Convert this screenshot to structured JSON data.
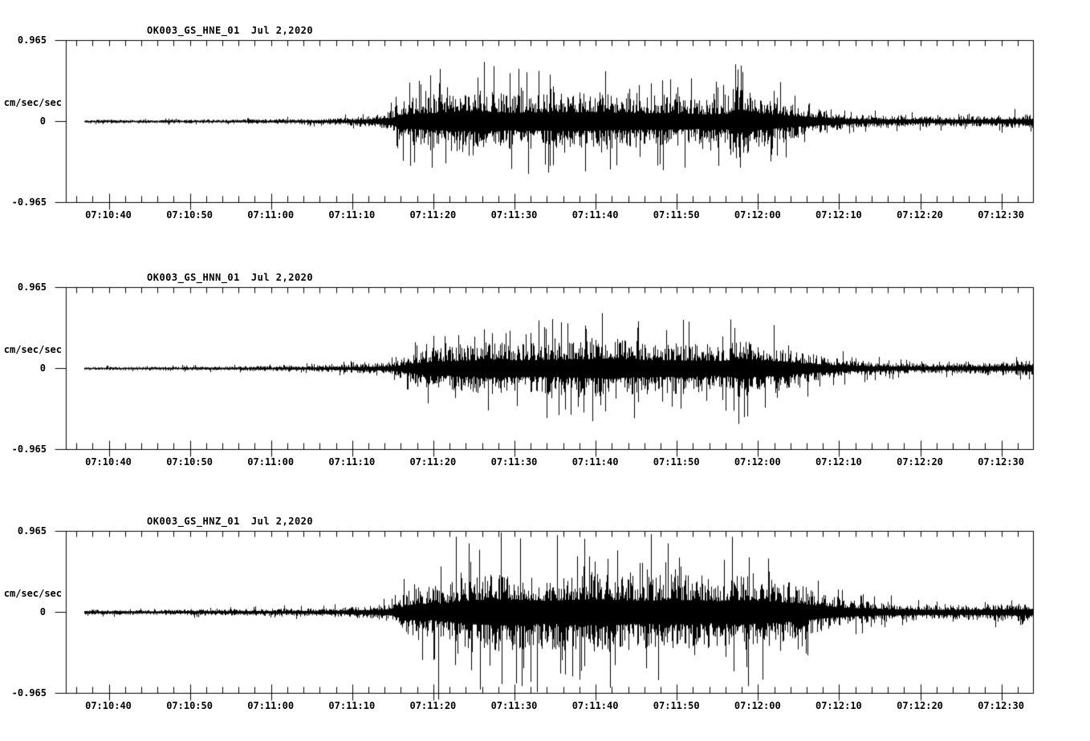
{
  "figure": {
    "background_color": "#ffffff",
    "trace_color": "#000000",
    "axis_color": "#000000"
  },
  "chart_data": [
    {
      "type": "line",
      "kind": "seismogram",
      "title": "OK003_GS_HNE_01",
      "date": "Jul 2,2020",
      "ylabel": "cm/sec/sec",
      "ymax_label": "0.965",
      "yzero_label": "0",
      "ymin_label": "-0.965",
      "ylim": [
        -0.965,
        0.965
      ],
      "xtick_labels": [
        "07:10:40",
        "07:10:50",
        "07:11:00",
        "07:11:10",
        "07:11:20",
        "07:11:30",
        "07:11:40",
        "07:11:50",
        "07:12:00",
        "07:12:10",
        "07:12:20",
        "07:12:30"
      ],
      "x_start_time": "07:10:35",
      "x_end_time": "07:12:34",
      "x_major_tick_interval_sec": 10,
      "x_minor_tick_interval_sec": 2,
      "envelope_units": "cm/sec/sec amplitude vs seconds from left edge",
      "envelope": [
        [
          0,
          0.022
        ],
        [
          10,
          0.024
        ],
        [
          20,
          0.028
        ],
        [
          28,
          0.034
        ],
        [
          34,
          0.05
        ],
        [
          38,
          0.08
        ],
        [
          40,
          0.14
        ],
        [
          41.5,
          0.3
        ],
        [
          44,
          0.34
        ],
        [
          48,
          0.4
        ],
        [
          51,
          0.42
        ],
        [
          55,
          0.37
        ],
        [
          59,
          0.39
        ],
        [
          63,
          0.4
        ],
        [
          67,
          0.37
        ],
        [
          71,
          0.35
        ],
        [
          75,
          0.34
        ],
        [
          79,
          0.3
        ],
        [
          81.5,
          0.33
        ],
        [
          82.5,
          0.5
        ],
        [
          84,
          0.44
        ],
        [
          86,
          0.33
        ],
        [
          89,
          0.25
        ],
        [
          92,
          0.18
        ],
        [
          95,
          0.12
        ],
        [
          98,
          0.09
        ],
        [
          102,
          0.075
        ],
        [
          107,
          0.065
        ],
        [
          112,
          0.07
        ],
        [
          116,
          0.085
        ],
        [
          119.2,
          0.1
        ]
      ],
      "peaks": [
        [
          51.5,
          0.71
        ],
        [
          66.4,
          0.6
        ],
        [
          82.7,
          0.62
        ],
        [
          45,
          -0.55
        ],
        [
          60,
          -0.52
        ],
        [
          83,
          -0.55
        ]
      ],
      "seed": 7
    },
    {
      "type": "line",
      "kind": "seismogram",
      "title": "OK003_GS_HNN_01",
      "date": "Jul 2,2020",
      "ylabel": "cm/sec/sec",
      "ymax_label": "0.965",
      "yzero_label": "0",
      "ymin_label": "-0.965",
      "ylim": [
        -0.965,
        0.965
      ],
      "xtick_labels": [
        "07:10:40",
        "07:10:50",
        "07:11:00",
        "07:11:10",
        "07:11:20",
        "07:11:30",
        "07:11:40",
        "07:11:50",
        "07:12:00",
        "07:12:10",
        "07:12:20",
        "07:12:30"
      ],
      "x_start_time": "07:10:35",
      "x_end_time": "07:12:34",
      "x_major_tick_interval_sec": 10,
      "x_minor_tick_interval_sec": 2,
      "envelope_units": "cm/sec/sec amplitude vs seconds from left edge",
      "envelope": [
        [
          0,
          0.02
        ],
        [
          12,
          0.024
        ],
        [
          22,
          0.03
        ],
        [
          30,
          0.04
        ],
        [
          35,
          0.055
        ],
        [
          39,
          0.08
        ],
        [
          41,
          0.12
        ],
        [
          43,
          0.22
        ],
        [
          46,
          0.3
        ],
        [
          49,
          0.33
        ],
        [
          53,
          0.36
        ],
        [
          57,
          0.34
        ],
        [
          61,
          0.36
        ],
        [
          64,
          0.4
        ],
        [
          67,
          0.42
        ],
        [
          70,
          0.37
        ],
        [
          74,
          0.35
        ],
        [
          78,
          0.33
        ],
        [
          81,
          0.31
        ],
        [
          83,
          0.43
        ],
        [
          85,
          0.36
        ],
        [
          88,
          0.29
        ],
        [
          91,
          0.21
        ],
        [
          94,
          0.15
        ],
        [
          97,
          0.11
        ],
        [
          100,
          0.085
        ],
        [
          104,
          0.07
        ],
        [
          109,
          0.065
        ],
        [
          113,
          0.075
        ],
        [
          116,
          0.085
        ],
        [
          119.2,
          0.11
        ]
      ],
      "peaks": [
        [
          66,
          0.66
        ],
        [
          61,
          0.55
        ],
        [
          76,
          0.58
        ],
        [
          82.8,
          -0.66
        ],
        [
          83.5,
          -0.58
        ],
        [
          52,
          -0.5
        ],
        [
          70,
          -0.52
        ]
      ],
      "seed": 13
    },
    {
      "type": "line",
      "kind": "seismogram",
      "title": "OK003_GS_HNZ_01",
      "date": "Jul 2,2020",
      "ylabel": "cm/sec/sec",
      "ymax_label": "0.965",
      "yzero_label": "0",
      "ymin_label": "-0.965",
      "ylim": [
        -0.965,
        0.965
      ],
      "xtick_labels": [
        "07:10:40",
        "07:10:50",
        "07:11:00",
        "07:11:10",
        "07:11:20",
        "07:11:30",
        "07:11:40",
        "07:11:50",
        "07:12:00",
        "07:12:10",
        "07:12:20",
        "07:12:30"
      ],
      "x_start_time": "07:10:35",
      "x_end_time": "07:12:34",
      "x_major_tick_interval_sec": 10,
      "x_minor_tick_interval_sec": 2,
      "envelope_units": "cm/sec/sec amplitude vs seconds from left edge",
      "envelope": [
        [
          0,
          0.034
        ],
        [
          10,
          0.036
        ],
        [
          20,
          0.042
        ],
        [
          28,
          0.05
        ],
        [
          33,
          0.06
        ],
        [
          37,
          0.085
        ],
        [
          40,
          0.12
        ],
        [
          42,
          0.28
        ],
        [
          43.5,
          0.38
        ],
        [
          45,
          0.33
        ],
        [
          47,
          0.4
        ],
        [
          50,
          0.5
        ],
        [
          53,
          0.55
        ],
        [
          56,
          0.52
        ],
        [
          59,
          0.48
        ],
        [
          62,
          0.52
        ],
        [
          65,
          0.55
        ],
        [
          68,
          0.52
        ],
        [
          71,
          0.48
        ],
        [
          74,
          0.52
        ],
        [
          77,
          0.5
        ],
        [
          80,
          0.47
        ],
        [
          83,
          0.52
        ],
        [
          86,
          0.47
        ],
        [
          88,
          0.43
        ],
        [
          90,
          0.38
        ],
        [
          92,
          0.3
        ],
        [
          94,
          0.24
        ],
        [
          96,
          0.19
        ],
        [
          98,
          0.16
        ],
        [
          101,
          0.13
        ],
        [
          105,
          0.11
        ],
        [
          109,
          0.1
        ],
        [
          113,
          0.11
        ],
        [
          116,
          0.12
        ],
        [
          119.2,
          0.13
        ]
      ],
      "peaks": [
        [
          53.5,
          0.95
        ],
        [
          48,
          0.9
        ],
        [
          60.5,
          0.92
        ],
        [
          72,
          0.93
        ],
        [
          82,
          0.9
        ],
        [
          45.8,
          -1.04
        ],
        [
          58,
          -0.95
        ],
        [
          67,
          -0.9
        ],
        [
          84,
          -0.88
        ],
        [
          51,
          -0.92
        ]
      ],
      "seed": 21
    }
  ]
}
